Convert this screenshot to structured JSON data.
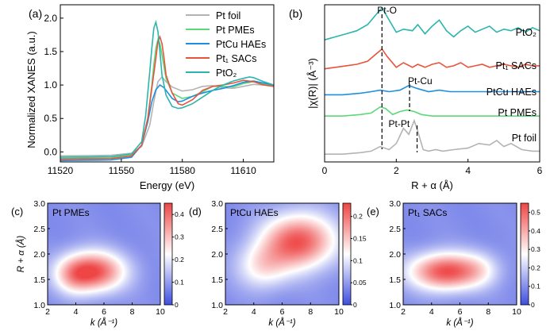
{
  "colors": {
    "pt_foil": "#b3b3b3",
    "pt_pmes": "#5dd879",
    "ptcu_haes": "#1e8fe0",
    "pt1_sacs": "#e8533c",
    "pto2": "#2bb5ad",
    "map_low": "#3f4fe0",
    "map_mid": "#ffffff",
    "map_high": "#ee4545"
  },
  "chart_data": [
    {
      "id": "a",
      "panel_label": "(a)",
      "type": "line",
      "xlabel": "Energy (eV)",
      "ylabel": "Normalized XANES (a.u.)",
      "xlim": [
        11520,
        11625
      ],
      "ylim": [
        -0.15,
        2.2
      ],
      "xticks": [
        "11520",
        "11550",
        "11580",
        "11610"
      ],
      "yticks": [
        "0.0",
        "0.5",
        "1.0",
        "1.5",
        "2.0"
      ],
      "legend": "top-right",
      "series": [
        {
          "name": "Pt foil",
          "key": "pt_foil",
          "x": [
            11520,
            11545,
            11555,
            11560,
            11564,
            11566,
            11568,
            11570,
            11572,
            11575,
            11580,
            11585,
            11590,
            11595,
            11600,
            11605,
            11610,
            11615,
            11620,
            11625
          ],
          "y": [
            -0.06,
            -0.05,
            -0.02,
            0.08,
            0.4,
            0.75,
            1.05,
            1.12,
            1.05,
            0.97,
            0.91,
            0.93,
            0.98,
            0.99,
            0.96,
            0.95,
            0.98,
            1.01,
            1.0,
            0.99
          ]
        },
        {
          "name": "Pt PMEs",
          "key": "pt_pmes",
          "x": [
            11520,
            11545,
            11555,
            11560,
            11563,
            11565,
            11566,
            11567,
            11568,
            11569,
            11570,
            11572,
            11575,
            11580,
            11585,
            11590,
            11595,
            11600,
            11605,
            11610,
            11615,
            11620,
            11625
          ],
          "y": [
            -0.1,
            -0.09,
            -0.05,
            0.1,
            0.5,
            1.0,
            1.3,
            1.55,
            1.68,
            1.62,
            1.45,
            1.1,
            0.88,
            0.8,
            0.83,
            0.9,
            0.98,
            0.98,
            0.97,
            1.02,
            1.05,
            1.02,
            0.98
          ]
        },
        {
          "name": "PtCu HAEs",
          "key": "ptcu_haes",
          "x": [
            11520,
            11545,
            11555,
            11560,
            11563,
            11565,
            11567,
            11569,
            11571,
            11573,
            11575,
            11578,
            11580,
            11585,
            11590,
            11595,
            11600,
            11605,
            11610,
            11615,
            11620,
            11625
          ],
          "y": [
            -0.13,
            -0.12,
            -0.08,
            0.1,
            0.45,
            0.75,
            0.93,
            1.0,
            0.96,
            0.88,
            0.8,
            0.75,
            0.76,
            0.83,
            0.88,
            0.92,
            0.95,
            0.99,
            1.04,
            1.06,
            1.03,
            1.0
          ]
        },
        {
          "name": "Pt₁ SACs",
          "key": "pt1_sacs",
          "x": [
            11520,
            11545,
            11555,
            11560,
            11563,
            11565,
            11567,
            11568,
            11569,
            11570,
            11571,
            11572,
            11575,
            11578,
            11580,
            11585,
            11590,
            11595,
            11600,
            11605,
            11610,
            11615,
            11620,
            11625
          ],
          "y": [
            -0.11,
            -0.1,
            -0.06,
            0.1,
            0.5,
            0.95,
            1.4,
            1.65,
            1.72,
            1.62,
            1.4,
            1.15,
            0.88,
            0.72,
            0.7,
            0.78,
            0.92,
            0.98,
            1.0,
            1.03,
            1.07,
            1.05,
            1.0,
            0.98
          ]
        },
        {
          "name": "PtO₂",
          "key": "pto2",
          "x": [
            11520,
            11545,
            11555,
            11560,
            11562,
            11564,
            11565,
            11566,
            11567,
            11568,
            11569,
            11570,
            11572,
            11575,
            11578,
            11580,
            11585,
            11590,
            11595,
            11600,
            11605,
            11610,
            11613,
            11615,
            11620,
            11625
          ],
          "y": [
            -0.08,
            -0.07,
            -0.03,
            0.15,
            0.55,
            1.2,
            1.55,
            1.85,
            1.94,
            1.8,
            1.5,
            1.15,
            0.85,
            0.68,
            0.65,
            0.66,
            0.72,
            0.82,
            0.92,
            1.0,
            1.06,
            1.1,
            1.12,
            1.11,
            1.05,
            1.0
          ]
        }
      ]
    },
    {
      "id": "b",
      "panel_label": "(b)",
      "type": "line",
      "xlabel": "R + α (Å)",
      "ylabel": "|χ(R)| (Å⁻³)",
      "xlim": [
        0,
        6
      ],
      "ylim": [
        0,
        1
      ],
      "xticks": [
        "0",
        "2",
        "4",
        "6"
      ],
      "annotations": [
        "Pt-O",
        "Pt-Cu",
        "Pt-Pt"
      ],
      "dashed_lines_x": [
        1.6,
        2.37,
        2.58
      ],
      "series": [
        {
          "name": "PtO₂",
          "key": "pto2",
          "x": [
            0,
            0.3,
            0.6,
            0.9,
            1.2,
            1.45,
            1.6,
            1.75,
            2.0,
            2.2,
            2.45,
            2.6,
            2.8,
            3.0,
            3.2,
            3.4,
            3.6,
            3.8,
            4.0,
            4.2,
            4.4,
            4.6,
            4.8,
            5.0,
            5.2,
            5.4,
            5.6,
            5.8,
            6.0
          ],
          "y": [
            0.78,
            0.8,
            0.82,
            0.84,
            0.88,
            0.95,
            0.99,
            0.93,
            0.83,
            0.85,
            0.84,
            0.88,
            0.82,
            0.87,
            0.91,
            0.84,
            0.8,
            0.84,
            0.87,
            0.83,
            0.85,
            0.87,
            0.83,
            0.85,
            0.84,
            0.86,
            0.83,
            0.86,
            0.84
          ]
        },
        {
          "name": "Pt₁ SACs",
          "key": "pt1_sacs",
          "x": [
            0,
            0.3,
            0.6,
            0.9,
            1.2,
            1.45,
            1.6,
            1.75,
            2.0,
            2.2,
            2.45,
            2.6,
            2.8,
            3.0,
            3.2,
            3.4,
            3.6,
            3.8,
            4.0,
            4.2,
            4.4,
            4.6,
            4.8,
            5.0,
            5.2,
            5.4,
            5.6,
            5.8,
            6.0
          ],
          "y": [
            0.59,
            0.6,
            0.61,
            0.62,
            0.64,
            0.69,
            0.72,
            0.67,
            0.6,
            0.63,
            0.6,
            0.62,
            0.6,
            0.62,
            0.63,
            0.6,
            0.61,
            0.63,
            0.6,
            0.61,
            0.62,
            0.6,
            0.61,
            0.62,
            0.61,
            0.6,
            0.62,
            0.61,
            0.61
          ]
        },
        {
          "name": "PtCu HAEs",
          "key": "ptcu_haes",
          "x": [
            0,
            0.5,
            1.0,
            1.3,
            1.55,
            1.8,
            2.1,
            2.35,
            2.6,
            2.9,
            3.2,
            3.5,
            4.0,
            4.5,
            5.0,
            5.5,
            6.0
          ],
          "y": [
            0.42,
            0.42,
            0.43,
            0.44,
            0.45,
            0.44,
            0.45,
            0.48,
            0.46,
            0.44,
            0.45,
            0.44,
            0.44,
            0.44,
            0.44,
            0.44,
            0.44
          ]
        },
        {
          "name": "Pt PMEs",
          "key": "pt_pmes",
          "x": [
            0,
            0.5,
            1.0,
            1.3,
            1.55,
            1.7,
            1.9,
            2.1,
            2.3,
            2.5,
            2.7,
            3.0,
            3.3,
            3.6,
            4.0,
            4.5,
            5.0,
            5.5,
            6.0
          ],
          "y": [
            0.28,
            0.28,
            0.29,
            0.3,
            0.34,
            0.33,
            0.29,
            0.31,
            0.32,
            0.31,
            0.29,
            0.28,
            0.28,
            0.28,
            0.28,
            0.28,
            0.28,
            0.28,
            0.28
          ]
        },
        {
          "name": "Pt foil",
          "key": "pt_foil",
          "x": [
            0,
            0.5,
            1.0,
            1.3,
            1.55,
            1.8,
            2.0,
            2.2,
            2.35,
            2.5,
            2.6,
            2.75,
            2.9,
            3.1,
            3.3,
            3.6,
            4.0,
            4.3,
            4.6,
            4.8,
            5.0,
            5.2,
            5.5,
            5.8,
            6.0
          ],
          "y": [
            0.03,
            0.03,
            0.04,
            0.05,
            0.08,
            0.06,
            0.1,
            0.2,
            0.16,
            0.25,
            0.18,
            0.06,
            0.05,
            0.06,
            0.05,
            0.06,
            0.07,
            0.1,
            0.09,
            0.12,
            0.08,
            0.1,
            0.06,
            0.05,
            0.05
          ]
        }
      ]
    },
    {
      "id": "c",
      "panel_label": "(c)",
      "type": "heatmap",
      "title": "Pt PMEs",
      "xlabel": "k (Å⁻¹)",
      "ylabel": "R + α (Å)",
      "xlim": [
        2,
        10
      ],
      "ylim": [
        1.0,
        3.0
      ],
      "xticks": [
        "2",
        "4",
        "6",
        "8",
        "10"
      ],
      "yticks": [
        "1.0",
        "1.5",
        "2.0",
        "2.5",
        "3.0"
      ],
      "colorbar_ticks": [
        "0",
        "0.1",
        "0.2",
        "0.3",
        "0.4"
      ],
      "colorbar_max": 0.45,
      "peaks": [
        {
          "k": 5.2,
          "r": 1.65,
          "amp": 0.44,
          "sk": 1.6,
          "sr": 0.28
        },
        {
          "k": 3.8,
          "r": 1.55,
          "amp": 0.12,
          "sk": 0.9,
          "sr": 0.25
        }
      ]
    },
    {
      "id": "d",
      "panel_label": "(d)",
      "type": "heatmap",
      "title": "PtCu HAEs",
      "xlabel": "k (Å⁻¹)",
      "ylabel": "",
      "xlim": [
        2,
        10
      ],
      "ylim": [
        1.0,
        3.0
      ],
      "xticks": [
        "2",
        "4",
        "6",
        "8",
        "10"
      ],
      "yticks": [
        "1.0",
        "1.5",
        "2.0",
        "2.5",
        "3.0"
      ],
      "colorbar_ticks": [
        "0",
        "0.05",
        "0.1",
        "0.15",
        "0.2"
      ],
      "colorbar_max": 0.23,
      "peaks": [
        {
          "k": 7.2,
          "r": 2.25,
          "amp": 0.22,
          "sk": 1.8,
          "sr": 0.38
        },
        {
          "k": 4.6,
          "r": 1.75,
          "amp": 0.1,
          "sk": 1.3,
          "sr": 0.32
        }
      ]
    },
    {
      "id": "e",
      "panel_label": "(e)",
      "type": "heatmap",
      "title": "Pt₁ SACs",
      "xlabel": "k (Å⁻¹)",
      "ylabel": "",
      "xlim": [
        2,
        10
      ],
      "ylim": [
        1.0,
        3.0
      ],
      "xticks": [
        "2",
        "4",
        "6",
        "8",
        "10"
      ],
      "yticks": [
        "1.0",
        "1.5",
        "2.0",
        "2.5",
        "3.0"
      ],
      "colorbar_ticks": [
        "0",
        "0.1",
        "0.2",
        "0.3",
        "0.4",
        "0.5"
      ],
      "colorbar_max": 0.55,
      "peaks": [
        {
          "k": 5.0,
          "r": 1.65,
          "amp": 0.54,
          "sk": 1.8,
          "sr": 0.26
        },
        {
          "k": 7.5,
          "r": 1.7,
          "amp": 0.1,
          "sk": 1.0,
          "sr": 0.25
        }
      ]
    }
  ]
}
